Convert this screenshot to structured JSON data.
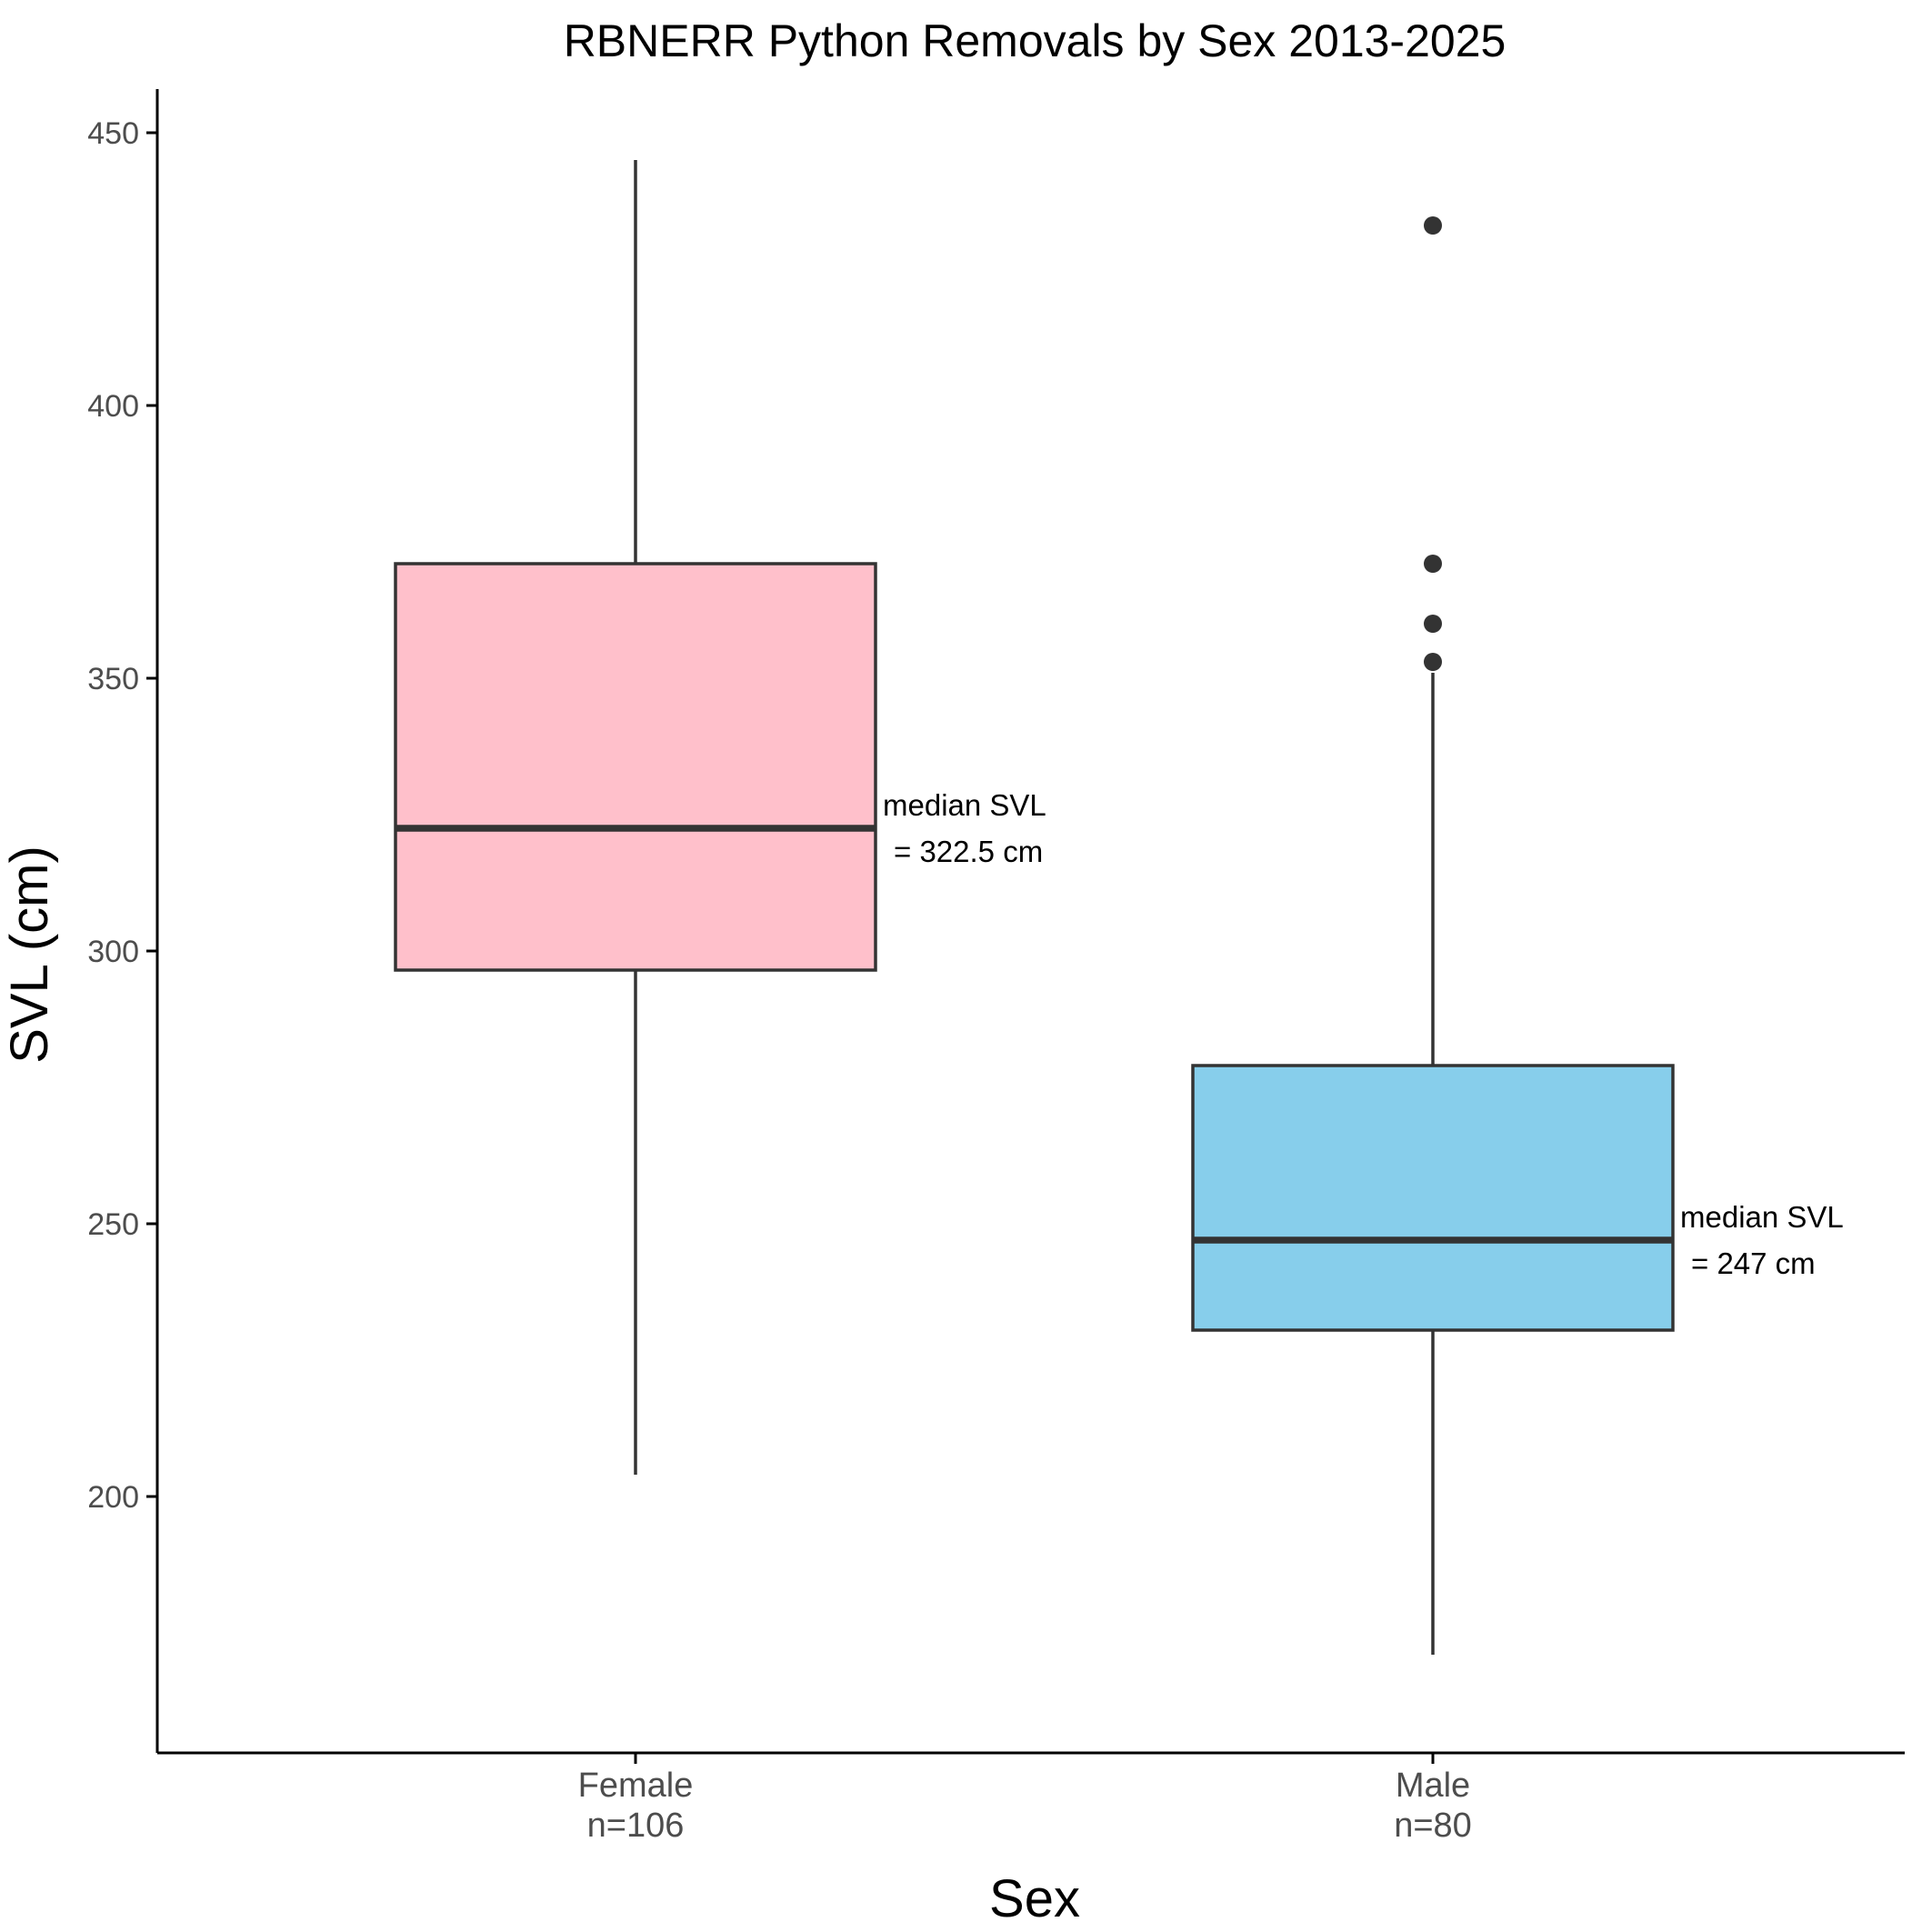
{
  "chart_data": {
    "type": "boxplot",
    "title": "RBNERR Python Removals by Sex 2013-2025",
    "xlabel": "Sex",
    "ylabel": "SVL (cm)",
    "ylim": [
      153,
      458
    ],
    "yticks": [
      200,
      250,
      300,
      350,
      400,
      450
    ],
    "grid": false,
    "legend": "none",
    "categories": [
      "Female",
      "Male"
    ],
    "series": [
      {
        "name": "Female",
        "label_main": "Female",
        "label_count": "n=106",
        "fill": "#FFC0CB",
        "whisker_low": 204,
        "q1": 296.5,
        "median": 322.5,
        "q3": 371,
        "whisker_high": 445,
        "outliers": [],
        "annotation": [
          "median SVL",
          " = 322.5 cm"
        ]
      },
      {
        "name": "Male",
        "label_main": "Male",
        "label_count": "n=80",
        "fill": "#87CEEB",
        "whisker_low": 171,
        "q1": 230.5,
        "median": 247,
        "q3": 279,
        "whisker_high": 351,
        "outliers": [
          433,
          371,
          360,
          353
        ],
        "annotation": [
          "median SVL",
          " = 247 cm"
        ]
      }
    ],
    "colors": {
      "outline": "#333333",
      "axis": "#000000"
    }
  }
}
